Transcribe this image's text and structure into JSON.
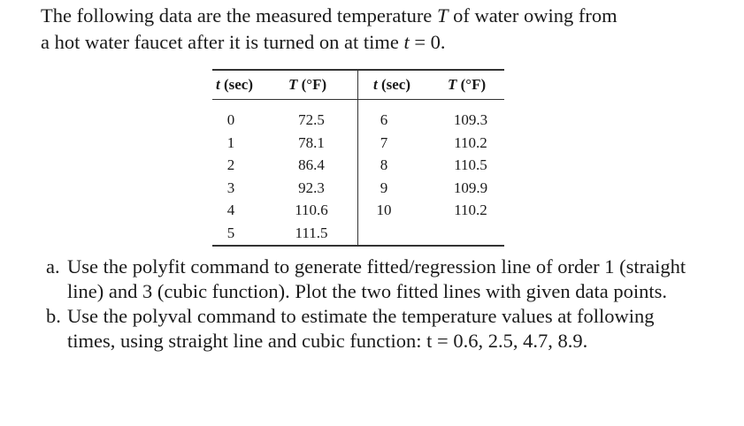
{
  "intro": {
    "line1_a": "The following data are the measured temperature ",
    "line1_var": "T",
    "line1_b": " of water  owing from",
    "line2_a": "a hot water faucet after it is turned on at time ",
    "line2_var": "t",
    "line2_b": " = 0."
  },
  "table": {
    "headers": [
      {
        "var": "t",
        "unit": " (sec)"
      },
      {
        "var": "T",
        "unit": " (°F)"
      },
      {
        "var": "t",
        "unit": " (sec)"
      },
      {
        "var": "T",
        "unit": " (°F)"
      }
    ],
    "left_t": [
      "0",
      "1",
      "2",
      "3",
      "4",
      "5"
    ],
    "left_T": [
      "72.5",
      "78.1",
      "86.4",
      "92.3",
      "110.6",
      "111.5"
    ],
    "right_t": [
      "6",
      "7",
      "8",
      "9",
      "10"
    ],
    "right_T": [
      "109.3",
      "110.2",
      "110.5",
      "109.9",
      "110.2"
    ]
  },
  "questions": [
    {
      "label": "a.",
      "lines": [
        "Use the polyfit command to generate fitted/regression line of order 1 (straight",
        "line) and 3 (cubic function). Plot the two fitted lines with given data points."
      ]
    },
    {
      "label": "b.",
      "lines": [
        "Use the polyval command to estimate the temperature values at following",
        "times, using straight line and cubic function: t = 0.6, 2.5, 4.7, 8.9."
      ]
    }
  ]
}
